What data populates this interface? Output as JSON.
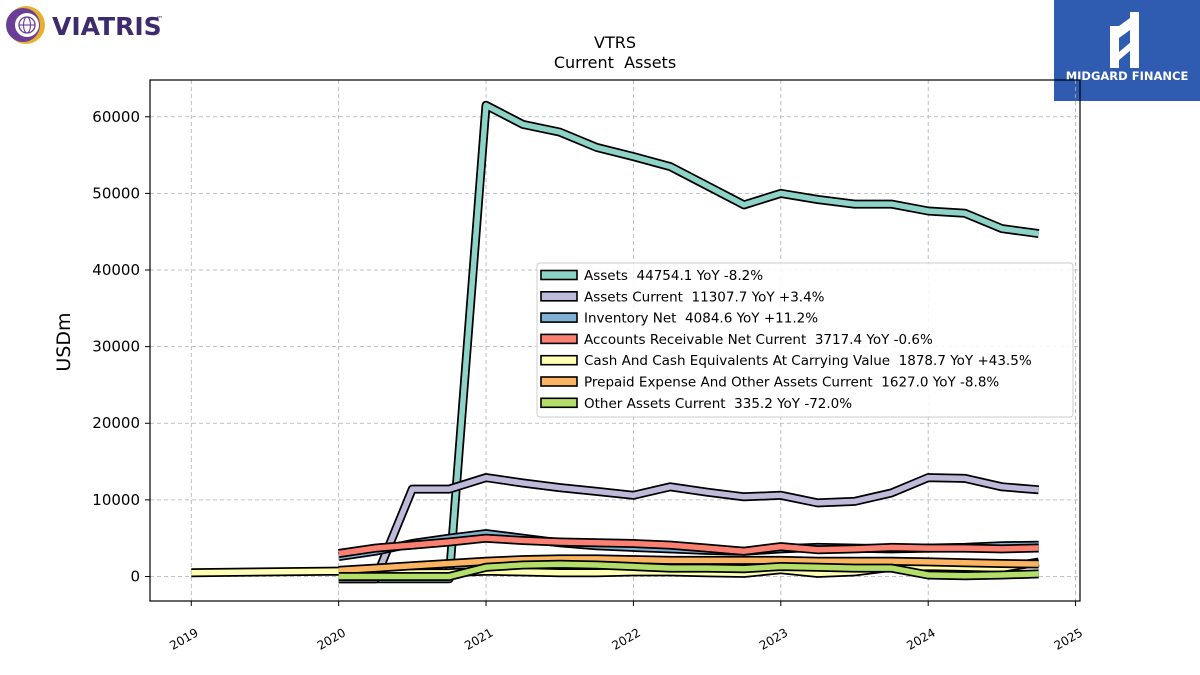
{
  "branding": {
    "company_logo_text": "VIATRIS",
    "company_logo_tm": "™",
    "publisher_logo_text": "MIDGARD FINANCE"
  },
  "chart_data": {
    "type": "line",
    "title": "VTRS",
    "subtitle": "Current  Assets",
    "ylabel": "USDm",
    "xlabel": "",
    "x_ticks": [
      "2019",
      "2020",
      "2021",
      "2022",
      "2023",
      "2024",
      "2025"
    ],
    "y_ticks": [
      "0",
      "10000",
      "20000",
      "30000",
      "40000",
      "50000",
      "60000"
    ],
    "xlim": [
      2018.72,
      2025.03
    ],
    "ylim": [
      -3200,
      64800
    ],
    "grid": true,
    "legend_position": "center-right",
    "series": [
      {
        "name": "Assets",
        "legend": "Assets  44754.1 YoY -8.2%",
        "color": "#8dd3c7",
        "points": [
          [
            2020.0,
            -300
          ],
          [
            2020.5,
            -300
          ],
          [
            2020.75,
            -300
          ],
          [
            2021.0,
            61500
          ],
          [
            2021.25,
            59000
          ],
          [
            2021.5,
            58000
          ],
          [
            2021.75,
            56000
          ],
          [
            2022.0,
            54800
          ],
          [
            2022.25,
            53500
          ],
          [
            2022.5,
            51000
          ],
          [
            2022.75,
            48500
          ],
          [
            2023.0,
            50000
          ],
          [
            2023.25,
            49200
          ],
          [
            2023.5,
            48600
          ],
          [
            2023.75,
            48600
          ],
          [
            2024.0,
            47700
          ],
          [
            2024.25,
            47400
          ],
          [
            2024.5,
            45400
          ],
          [
            2024.75,
            44754
          ]
        ]
      },
      {
        "name": "Assets Current",
        "legend": "Assets Current  11307.7 YoY +3.4%",
        "color": "#bebada",
        "points": [
          [
            2020.0,
            -300
          ],
          [
            2020.25,
            -300
          ],
          [
            2020.5,
            11400
          ],
          [
            2020.75,
            11400
          ],
          [
            2021.0,
            12900
          ],
          [
            2021.25,
            12200
          ],
          [
            2021.5,
            11600
          ],
          [
            2021.75,
            11100
          ],
          [
            2022.0,
            10600
          ],
          [
            2022.25,
            11700
          ],
          [
            2022.5,
            11000
          ],
          [
            2022.75,
            10400
          ],
          [
            2023.0,
            10600
          ],
          [
            2023.25,
            9600
          ],
          [
            2023.5,
            9800
          ],
          [
            2023.75,
            10900
          ],
          [
            2024.0,
            12900
          ],
          [
            2024.25,
            12800
          ],
          [
            2024.5,
            11700
          ],
          [
            2024.75,
            11308
          ]
        ]
      },
      {
        "name": "Inventory Net",
        "legend": "Inventory Net  4084.6 YoY +11.2%",
        "color": "#80b1d3",
        "points": [
          [
            2020.0,
            2600
          ],
          [
            2020.25,
            3300
          ],
          [
            2020.5,
            4300
          ],
          [
            2020.75,
            5000
          ],
          [
            2021.0,
            5600
          ],
          [
            2021.25,
            5000
          ],
          [
            2021.5,
            4400
          ],
          [
            2021.75,
            4000
          ],
          [
            2022.0,
            3800
          ],
          [
            2022.25,
            3600
          ],
          [
            2022.5,
            3400
          ],
          [
            2022.75,
            3300
          ],
          [
            2023.0,
            3600
          ],
          [
            2023.25,
            3800
          ],
          [
            2023.5,
            3700
          ],
          [
            2023.75,
            3600
          ],
          [
            2024.0,
            3700
          ],
          [
            2024.25,
            3800
          ],
          [
            2024.5,
            4000
          ],
          [
            2024.75,
            4085
          ]
        ]
      },
      {
        "name": "Accounts Receivable Net Current",
        "legend": "Accounts Receivable Net Current  3717.4 YoY -0.6%",
        "color": "#fb8072",
        "points": [
          [
            2020.0,
            3000
          ],
          [
            2020.25,
            3700
          ],
          [
            2020.5,
            4100
          ],
          [
            2020.75,
            4500
          ],
          [
            2021.0,
            5000
          ],
          [
            2021.25,
            4700
          ],
          [
            2021.5,
            4500
          ],
          [
            2021.75,
            4400
          ],
          [
            2022.0,
            4300
          ],
          [
            2022.25,
            4100
          ],
          [
            2022.5,
            3700
          ],
          [
            2022.75,
            3300
          ],
          [
            2023.0,
            3900
          ],
          [
            2023.25,
            3500
          ],
          [
            2023.5,
            3600
          ],
          [
            2023.75,
            3800
          ],
          [
            2024.0,
            3700
          ],
          [
            2024.25,
            3700
          ],
          [
            2024.5,
            3600
          ],
          [
            2024.75,
            3717
          ]
        ]
      },
      {
        "name": "Cash And Cash Equivalents At Carrying Value",
        "legend": "Cash And Cash Equivalents At Carrying Value  1878.7 YoY +43.5%",
        "color": "#ffffb3",
        "points": [
          [
            2019.0,
            500
          ],
          [
            2020.0,
            700
          ],
          [
            2020.25,
            500
          ],
          [
            2020.5,
            450
          ],
          [
            2020.75,
            500
          ],
          [
            2021.0,
            700
          ],
          [
            2021.25,
            600
          ],
          [
            2021.5,
            500
          ],
          [
            2021.75,
            500
          ],
          [
            2022.0,
            600
          ],
          [
            2022.25,
            600
          ],
          [
            2022.5,
            500
          ],
          [
            2022.75,
            400
          ],
          [
            2023.0,
            900
          ],
          [
            2023.25,
            400
          ],
          [
            2023.5,
            600
          ],
          [
            2023.75,
            1200
          ],
          [
            2024.0,
            1300
          ],
          [
            2024.25,
            1200
          ],
          [
            2024.5,
            1100
          ],
          [
            2024.75,
            1879
          ]
        ]
      },
      {
        "name": "Prepaid Expense And Other Assets Current",
        "legend": "Prepaid Expense And Other Assets Current  1627.0 YoY -8.8%",
        "color": "#fdb462",
        "points": [
          [
            2020.0,
            800
          ],
          [
            2020.25,
            1100
          ],
          [
            2020.5,
            1400
          ],
          [
            2020.75,
            1700
          ],
          [
            2021.0,
            2000
          ],
          [
            2021.25,
            2200
          ],
          [
            2021.5,
            2300
          ],
          [
            2021.75,
            2300
          ],
          [
            2022.0,
            2200
          ],
          [
            2022.25,
            2100
          ],
          [
            2022.5,
            2100
          ],
          [
            2022.75,
            2100
          ],
          [
            2023.0,
            2100
          ],
          [
            2023.25,
            2000
          ],
          [
            2023.5,
            2000
          ],
          [
            2023.75,
            2000
          ],
          [
            2024.0,
            1900
          ],
          [
            2024.25,
            1800
          ],
          [
            2024.5,
            1700
          ],
          [
            2024.75,
            1627
          ]
        ]
      },
      {
        "name": "Other Assets Current",
        "legend": "Other Assets Current  335.2 YoY -72.0%",
        "color": "#b3de69",
        "points": [
          [
            2020.0,
            0
          ],
          [
            2020.25,
            0
          ],
          [
            2020.5,
            0
          ],
          [
            2020.75,
            0
          ],
          [
            2021.0,
            1200
          ],
          [
            2021.25,
            1500
          ],
          [
            2021.5,
            1600
          ],
          [
            2021.75,
            1500
          ],
          [
            2022.0,
            1300
          ],
          [
            2022.25,
            1100
          ],
          [
            2022.5,
            1100
          ],
          [
            2022.75,
            1000
          ],
          [
            2023.0,
            1300
          ],
          [
            2023.25,
            1200
          ],
          [
            2023.5,
            1100
          ],
          [
            2023.75,
            1100
          ],
          [
            2024.0,
            200
          ],
          [
            2024.25,
            100
          ],
          [
            2024.5,
            200
          ],
          [
            2024.75,
            335
          ]
        ]
      }
    ]
  }
}
